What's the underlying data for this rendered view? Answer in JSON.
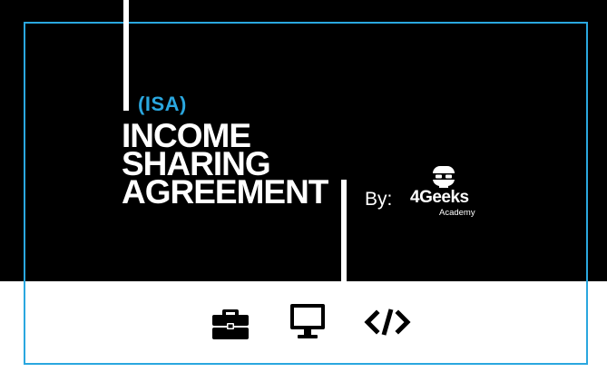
{
  "badge": "(ISA)",
  "title_lines": [
    "INCOME",
    "SHARING",
    "AGREEMENT"
  ],
  "by_label": "By:",
  "logo": {
    "name": "4Geeks",
    "sub": "Academy",
    "icon": "robot-head-icon"
  },
  "icons": [
    "briefcase-icon",
    "monitor-icon",
    "code-icon"
  ],
  "colors": {
    "accent": "#2aa7df",
    "background_top": "#000000",
    "background_bottom": "#ffffff",
    "text": "#ffffff"
  }
}
